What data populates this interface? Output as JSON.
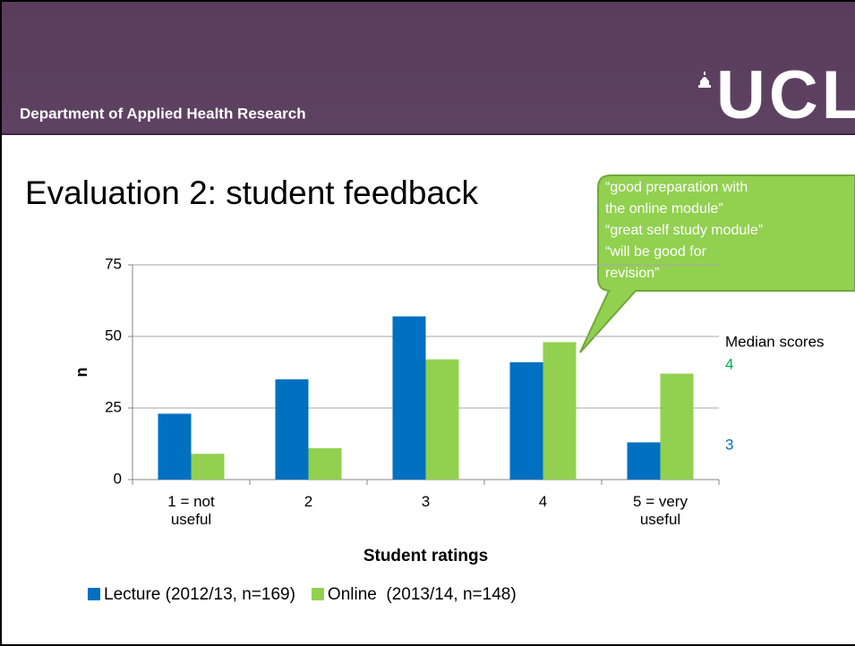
{
  "header": {
    "department": "Department of Applied Health Research",
    "logo": "UCL"
  },
  "title": "Evaluation 2: student feedback",
  "callout": {
    "lines": [
      "“good preparation with",
      "the online module”",
      "“great self study module”",
      "“will be good for",
      "revision”"
    ]
  },
  "median": {
    "label": "Median scores",
    "online": 4,
    "lecture": 3
  },
  "chart_data": {
    "type": "bar",
    "categories": [
      "1 = not useful",
      "2",
      "3",
      "4",
      "5 = very useful"
    ],
    "series": [
      {
        "name": "Lecture (2012/13, n=169)",
        "color": "#0070c0",
        "values": [
          23,
          35,
          57,
          41,
          13
        ]
      },
      {
        "name": "Online  (2013/14, n=148)",
        "color": "#92d050",
        "values": [
          9,
          11,
          42,
          48,
          37
        ]
      }
    ],
    "ylabel": "n",
    "xlabel": "Student ratings",
    "ylim": [
      0,
      75
    ],
    "yticks": [
      0,
      25,
      50,
      75
    ],
    "grid": true,
    "legend": "bottom"
  }
}
